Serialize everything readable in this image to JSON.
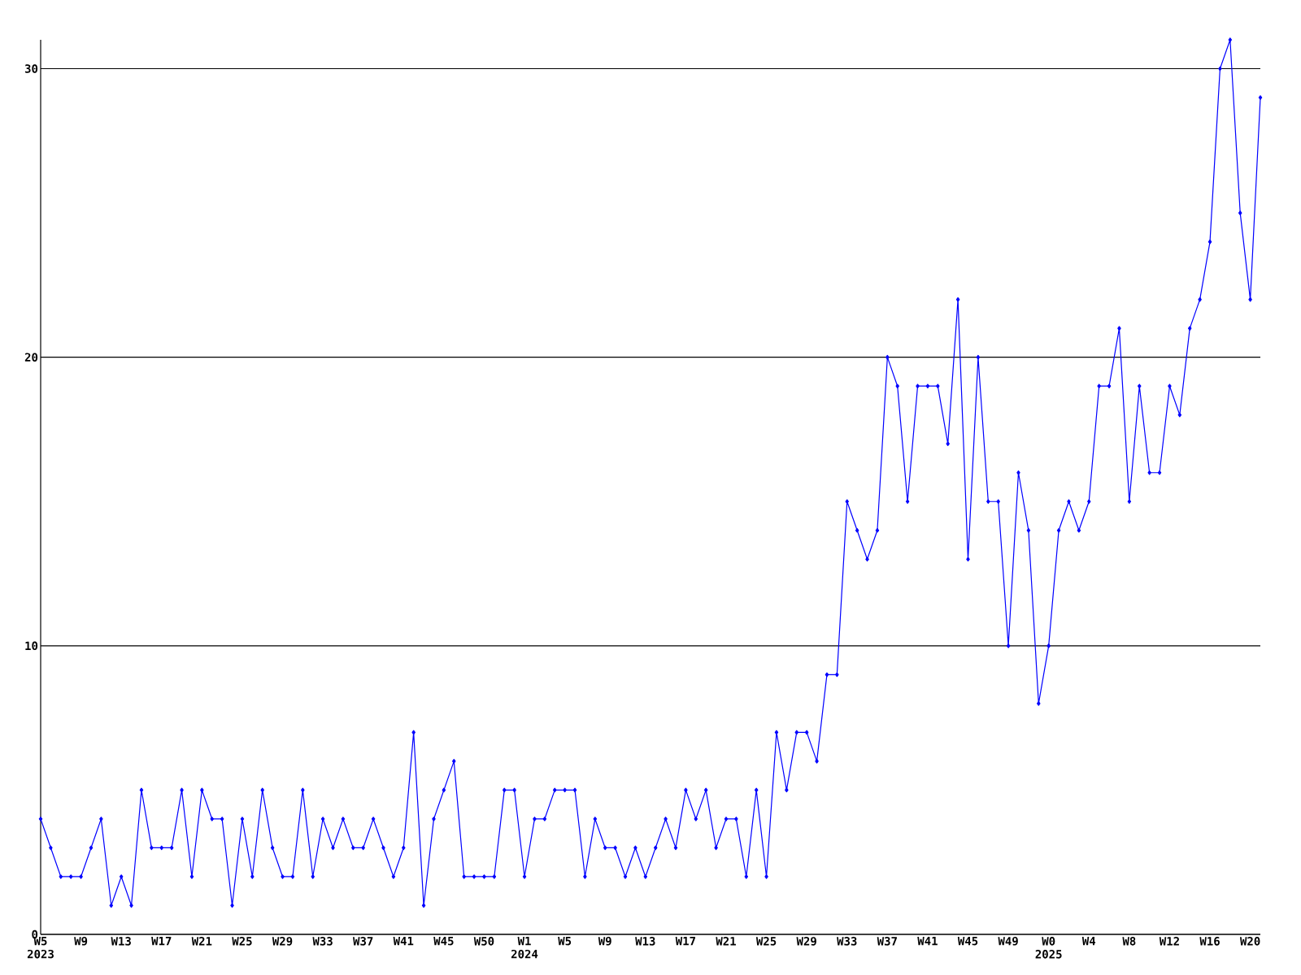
{
  "chart_data": {
    "type": "line",
    "categories": [
      "W5 2023",
      null,
      null,
      null,
      "W9",
      null,
      null,
      null,
      "W13",
      null,
      null,
      null,
      "W17",
      null,
      null,
      null,
      "W21",
      null,
      null,
      null,
      "W25",
      null,
      null,
      null,
      "W29",
      null,
      null,
      null,
      "W33",
      null,
      null,
      null,
      "W37",
      null,
      null,
      null,
      "W41",
      null,
      null,
      null,
      "W45",
      null,
      null,
      null,
      "W50",
      null,
      null,
      null,
      "W1 2024",
      null,
      null,
      null,
      "W5",
      null,
      null,
      null,
      "W9",
      null,
      null,
      null,
      "W13",
      null,
      null,
      null,
      "W17",
      null,
      null,
      null,
      "W21",
      null,
      null,
      null,
      "W25",
      null,
      null,
      null,
      "W29",
      null,
      null,
      null,
      "W33",
      null,
      null,
      null,
      "W37",
      null,
      null,
      null,
      "W41",
      null,
      null,
      null,
      "W45",
      null,
      null,
      null,
      "W49",
      null,
      null,
      null,
      "W0 2025",
      null,
      null,
      null,
      "W4",
      null,
      null,
      null,
      "W8",
      null,
      null,
      null,
      "W12",
      null,
      null,
      null,
      "W16",
      null,
      null,
      null,
      "W20",
      null
    ],
    "values": [
      4,
      3,
      2,
      2,
      2,
      3,
      4,
      1,
      2,
      1,
      5,
      3,
      3,
      3,
      5,
      2,
      5,
      4,
      4,
      1,
      4,
      2,
      5,
      3,
      2,
      2,
      5,
      2,
      4,
      3,
      4,
      3,
      3,
      4,
      3,
      2,
      3,
      7,
      1,
      4,
      5,
      6,
      2,
      2,
      2,
      2,
      5,
      5,
      2,
      4,
      4,
      5,
      5,
      5,
      2,
      4,
      3,
      3,
      2,
      3,
      2,
      3,
      4,
      3,
      5,
      4,
      5,
      3,
      4,
      4,
      2,
      5,
      2,
      7,
      5,
      7,
      7,
      6,
      9,
      9,
      15,
      14,
      13,
      14,
      20,
      19,
      15,
      19,
      19,
      19,
      17,
      22,
      13,
      20,
      15,
      15,
      10,
      16,
      14,
      8,
      10,
      14,
      15,
      14,
      15,
      19,
      19,
      21,
      15,
      19,
      16,
      16,
      19,
      18,
      21,
      22,
      24,
      30,
      31,
      25,
      22,
      29
    ],
    "color": "#0000ff",
    "marker": "diamond",
    "line_style": "solid",
    "ylim": [
      0,
      31
    ],
    "yticks": [
      0,
      10,
      20,
      30
    ],
    "grid": "y"
  }
}
